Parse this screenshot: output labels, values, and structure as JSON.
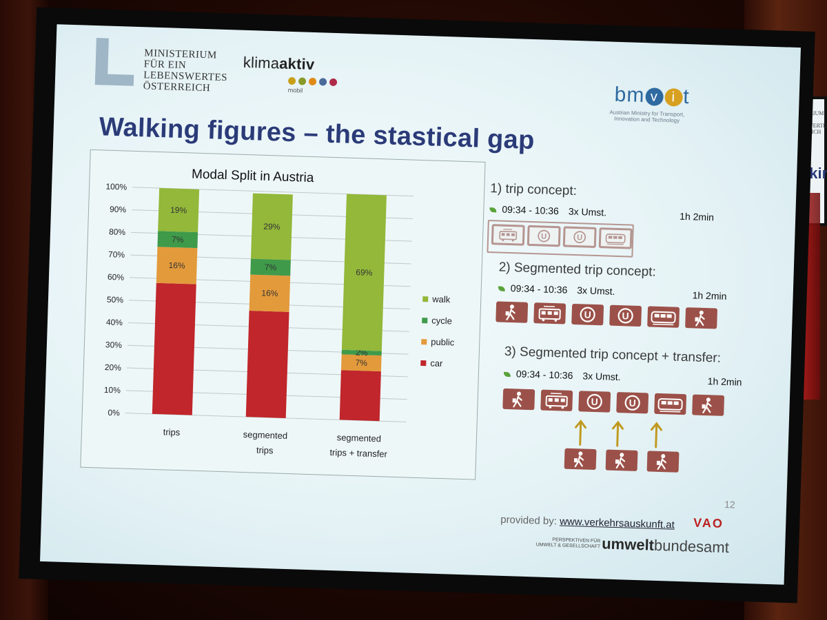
{
  "slide": {
    "ministry_lines": [
      "MINISTERIUM",
      "FÜR EIN",
      "LEBENSWERTES",
      "ÖSTERREICH"
    ],
    "klima": {
      "pre": "klima",
      "bold": "aktiv",
      "sub": "mobil",
      "dots": [
        "#c8a018",
        "#8a9a2a",
        "#e08a18",
        "#4a6a9a",
        "#b02a4a"
      ]
    },
    "bmvit": {
      "b": "bm",
      "v": "v",
      "i": "i",
      "t": "t",
      "sub": "Austrian Ministry for Transport, Innovation and Technology"
    },
    "headline": "Walking figures – the stastical gap",
    "page_number": "12",
    "provided_label": "provided by:",
    "provided_link": "www.verkehrsauskunft.at",
    "vao": "VAO",
    "uba_small": "PERSPEKTIVEN FÜR UMWELT & GESELLSCHAFT",
    "uba_a": "umwelt",
    "uba_b": "bundesamt"
  },
  "concepts": [
    {
      "title": "1) trip concept:",
      "time": "09:34 - 10:36",
      "changes": "3x Umst.",
      "duration": "1h 2min",
      "icons": [
        "tram-icon",
        "u-bahn-icon",
        "u-bahn-icon",
        "train-icon"
      ]
    },
    {
      "title": "2) Segmented trip concept:",
      "time": "09:34 - 10:36",
      "changes": "3x Umst.",
      "duration": "1h 2min",
      "icons": [
        "walk-icon",
        "tram-icon",
        "u-bahn-icon",
        "u-bahn-icon",
        "train-icon",
        "walk-icon"
      ]
    },
    {
      "title": "3) Segmented trip concept + transfer:",
      "time": "09:34 - 10:36",
      "changes": "3x Umst.",
      "duration": "1h 2min",
      "icons": [
        "walk-icon",
        "tram-icon",
        "u-bahn-icon",
        "u-bahn-icon",
        "train-icon",
        "walk-icon"
      ],
      "transfer_icons": [
        "walk-icon",
        "walk-icon",
        "walk-icon"
      ]
    }
  ],
  "colors": {
    "tile": "#9b5149",
    "arrow": "#c09a20",
    "headline": "#2b3b78"
  },
  "chart_data": {
    "type": "bar",
    "stacked": true,
    "title": "Modal Split in Austria",
    "categories": [
      [
        "trips"
      ],
      [
        "segmented",
        "trips"
      ],
      [
        "segmented",
        "trips + transfer"
      ]
    ],
    "series": [
      {
        "name": "car",
        "color": "#c0262b",
        "values": [
          58,
          47,
          22
        ],
        "labels": [
          "",
          "",
          ""
        ]
      },
      {
        "name": "public",
        "color": "#e39a3b",
        "values": [
          16,
          16,
          7
        ],
        "labels": [
          "16%",
          "16%",
          "7%"
        ]
      },
      {
        "name": "cycle",
        "color": "#3f9a4a",
        "values": [
          7,
          7,
          2
        ],
        "labels": [
          "7%",
          "7%",
          "2%"
        ]
      },
      {
        "name": "walk",
        "color": "#93b83a",
        "values": [
          19,
          29,
          69
        ],
        "labels": [
          "19%",
          "29%",
          "69%"
        ]
      }
    ],
    "ylim": [
      0,
      100
    ],
    "yticks": [
      "0%",
      "10%",
      "20%",
      "30%",
      "40%",
      "50%",
      "60%",
      "70%",
      "80%",
      "90%",
      "100%"
    ],
    "legend_position": "right",
    "grid": true
  }
}
